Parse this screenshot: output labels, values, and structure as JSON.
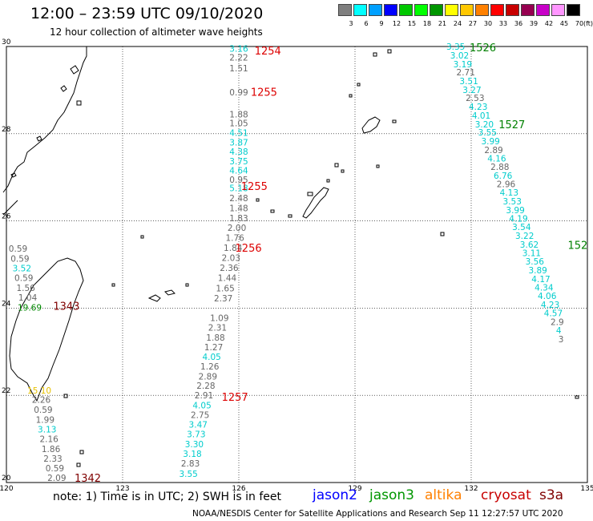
{
  "header": {
    "title": "12:00 – 23:59 UTC 09/10/2020",
    "subtitle": "12 hour collection of altimeter wave heights"
  },
  "colorbar": {
    "unit": "(ft)",
    "ticks": [
      "3",
      "6",
      "9",
      "12",
      "15",
      "18",
      "21",
      "24",
      "27",
      "30",
      "33",
      "36",
      "39",
      "42",
      "45",
      "70"
    ],
    "colors": [
      "#7f7f7f",
      "#00ffff",
      "#00a0ff",
      "#0000ff",
      "#00c800",
      "#00ff00",
      "#009600",
      "#ffff00",
      "#ffc800",
      "#ff8000",
      "#ff0000",
      "#c80000",
      "#960050",
      "#c800c8",
      "#ff96ff",
      "#000000"
    ]
  },
  "footer": {
    "note": "note:  1) Time is in UTC;  2) SWH is in feet",
    "credit": "NOAA/NESDIS Center for Satellite Applications and Research    Sep 11 12:27:57 UTC 2020"
  },
  "legend": [
    {
      "label": "jason2",
      "color": "#0000ff"
    },
    {
      "label": "jason3",
      "color": "#009600"
    },
    {
      "label": "altika",
      "color": "#ff8000"
    },
    {
      "label": "cryosat",
      "color": "#c80000"
    },
    {
      "label": "s3a",
      "color": "#800000"
    }
  ],
  "chart_data": {
    "type": "scatter",
    "title": "12 hour collection of altimeter wave heights",
    "x_axis": {
      "ticks": [
        "120",
        "123",
        "126",
        "129",
        "132",
        "135"
      ],
      "range": [
        120,
        135
      ]
    },
    "y_axis": {
      "ticks": [
        "20",
        "22",
        "24",
        "26",
        "28",
        "30"
      ],
      "range": [
        20,
        30
      ]
    },
    "grid": true,
    "value_colors": {
      "grey": "#666666",
      "cyan": "#00cccc",
      "orange": "#e6c000",
      "green": "#008800"
    },
    "time_color": {
      "red": "#dd0000",
      "green": "#008000",
      "maroon": "#800000"
    },
    "tracks": [
      {
        "name": "track-126",
        "points": [
          {
            "lon": 126.0,
            "lat": 29.95,
            "v": "3.16",
            "c": "cyan"
          },
          {
            "lon": 126.0,
            "lat": 29.75,
            "v": "2.22",
            "c": "grey"
          },
          {
            "lon": 126.0,
            "lat": 29.5,
            "v": "1.51",
            "c": "grey"
          },
          {
            "lon": 126.0,
            "lat": 28.95,
            "v": "0.99",
            "c": "grey"
          },
          {
            "lon": 126.0,
            "lat": 28.45,
            "v": "1.88",
            "c": "grey"
          },
          {
            "lon": 126.0,
            "lat": 28.24,
            "v": "1.05",
            "c": "grey"
          },
          {
            "lon": 126.0,
            "lat": 28.02,
            "v": "4.51",
            "c": "cyan"
          },
          {
            "lon": 126.0,
            "lat": 27.8,
            "v": "3.87",
            "c": "cyan"
          },
          {
            "lon": 126.0,
            "lat": 27.59,
            "v": "4.38",
            "c": "cyan"
          },
          {
            "lon": 126.0,
            "lat": 27.37,
            "v": "3.75",
            "c": "cyan"
          },
          {
            "lon": 126.0,
            "lat": 27.16,
            "v": "4.64",
            "c": "cyan"
          },
          {
            "lon": 126.0,
            "lat": 26.95,
            "v": "0.95",
            "c": "grey"
          },
          {
            "lon": 126.0,
            "lat": 26.76,
            "v": "5.18",
            "c": "cyan"
          },
          {
            "lon": 126.0,
            "lat": 26.53,
            "v": "2.48",
            "c": "grey"
          },
          {
            "lon": 126.0,
            "lat": 26.3,
            "v": "1.48",
            "c": "grey"
          },
          {
            "lon": 126.0,
            "lat": 26.07,
            "v": "1.83",
            "c": "grey"
          },
          {
            "lon": 125.95,
            "lat": 25.85,
            "v": "2.00",
            "c": "grey"
          },
          {
            "lon": 125.9,
            "lat": 25.62,
            "v": "1.76",
            "c": "grey"
          },
          {
            "lon": 125.85,
            "lat": 25.39,
            "v": "1.84",
            "c": "grey"
          },
          {
            "lon": 125.8,
            "lat": 25.16,
            "v": "2.03",
            "c": "grey"
          },
          {
            "lon": 125.75,
            "lat": 24.93,
            "v": "2.36",
            "c": "grey"
          },
          {
            "lon": 125.7,
            "lat": 24.7,
            "v": "1.44",
            "c": "grey"
          },
          {
            "lon": 125.65,
            "lat": 24.46,
            "v": "1.65",
            "c": "grey"
          },
          {
            "lon": 125.6,
            "lat": 24.23,
            "v": "2.37",
            "c": "grey"
          },
          {
            "lon": 125.5,
            "lat": 23.78,
            "v": "1.09",
            "c": "grey"
          },
          {
            "lon": 125.45,
            "lat": 23.56,
            "v": "2.31",
            "c": "grey"
          },
          {
            "lon": 125.4,
            "lat": 23.33,
            "v": "1.88",
            "c": "grey"
          },
          {
            "lon": 125.35,
            "lat": 23.11,
            "v": "1.27",
            "c": "grey"
          },
          {
            "lon": 125.3,
            "lat": 22.89,
            "v": "4.05",
            "c": "cyan"
          },
          {
            "lon": 125.25,
            "lat": 22.67,
            "v": "1.26",
            "c": "grey"
          },
          {
            "lon": 125.2,
            "lat": 22.44,
            "v": "2.89",
            "c": "grey"
          },
          {
            "lon": 125.15,
            "lat": 22.22,
            "v": "2.28",
            "c": "grey"
          },
          {
            "lon": 125.1,
            "lat": 22.0,
            "v": "2.91",
            "c": "grey"
          },
          {
            "lon": 125.05,
            "lat": 21.77,
            "v": "4.05",
            "c": "cyan"
          },
          {
            "lon": 125.0,
            "lat": 21.55,
            "v": "2.75",
            "c": "grey"
          },
          {
            "lon": 124.95,
            "lat": 21.33,
            "v": "3.47",
            "c": "cyan"
          },
          {
            "lon": 124.9,
            "lat": 21.11,
            "v": "3.73",
            "c": "cyan"
          },
          {
            "lon": 124.85,
            "lat": 20.88,
            "v": "3.30",
            "c": "cyan"
          },
          {
            "lon": 124.8,
            "lat": 20.66,
            "v": "3.18",
            "c": "cyan"
          },
          {
            "lon": 124.75,
            "lat": 20.44,
            "v": "2.83",
            "c": "grey"
          },
          {
            "lon": 124.7,
            "lat": 20.2,
            "v": "3.55",
            "c": "cyan"
          }
        ],
        "times": [
          {
            "lon": 126.75,
            "lat": 29.91,
            "t": "1254",
            "c": "red"
          },
          {
            "lon": 126.65,
            "lat": 28.96,
            "t": "1255",
            "c": "red"
          },
          {
            "lon": 126.4,
            "lat": 26.8,
            "t": "1255",
            "c": "red"
          },
          {
            "lon": 126.25,
            "lat": 25.39,
            "t": "1256",
            "c": "red"
          },
          {
            "lon": 125.9,
            "lat": 21.97,
            "t": "1257",
            "c": "red"
          }
        ]
      },
      {
        "name": "track-132",
        "points": [
          {
            "lon": 131.6,
            "lat": 30.0,
            "v": "3.35",
            "c": "cyan"
          },
          {
            "lon": 131.7,
            "lat": 29.8,
            "v": "3.02",
            "c": "cyan"
          },
          {
            "lon": 131.78,
            "lat": 29.6,
            "v": "3.19",
            "c": "cyan"
          },
          {
            "lon": 131.86,
            "lat": 29.41,
            "v": "2.71",
            "c": "grey"
          },
          {
            "lon": 131.94,
            "lat": 29.21,
            "v": "3.51",
            "c": "cyan"
          },
          {
            "lon": 132.02,
            "lat": 29.01,
            "v": "3.27",
            "c": "cyan"
          },
          {
            "lon": 132.1,
            "lat": 28.82,
            "v": "2.53",
            "c": "grey"
          },
          {
            "lon": 132.18,
            "lat": 28.62,
            "v": "4.23",
            "c": "cyan"
          },
          {
            "lon": 132.26,
            "lat": 28.42,
            "v": "4.01",
            "c": "cyan"
          },
          {
            "lon": 132.34,
            "lat": 28.22,
            "v": "3.20",
            "c": "cyan"
          },
          {
            "lon": 132.42,
            "lat": 28.03,
            "v": "3.55",
            "c": "cyan"
          },
          {
            "lon": 132.5,
            "lat": 27.83,
            "v": "3.99",
            "c": "cyan"
          },
          {
            "lon": 132.58,
            "lat": 27.63,
            "v": "2.89",
            "c": "grey"
          },
          {
            "lon": 132.66,
            "lat": 27.44,
            "v": "4.16",
            "c": "cyan"
          },
          {
            "lon": 132.74,
            "lat": 27.24,
            "v": "2.88",
            "c": "grey"
          },
          {
            "lon": 132.82,
            "lat": 27.04,
            "v": "6.76",
            "c": "cyan"
          },
          {
            "lon": 132.9,
            "lat": 26.85,
            "v": "2.96",
            "c": "grey"
          },
          {
            "lon": 132.98,
            "lat": 26.65,
            "v": "4.13",
            "c": "cyan"
          },
          {
            "lon": 133.06,
            "lat": 26.45,
            "v": "3.53",
            "c": "cyan"
          },
          {
            "lon": 133.14,
            "lat": 26.25,
            "v": "3.99",
            "c": "cyan"
          },
          {
            "lon": 133.22,
            "lat": 26.06,
            "v": "4.19",
            "c": "cyan"
          },
          {
            "lon": 133.3,
            "lat": 25.86,
            "v": "3.54",
            "c": "cyan"
          },
          {
            "lon": 133.38,
            "lat": 25.66,
            "v": "3.22",
            "c": "cyan"
          },
          {
            "lon": 133.5,
            "lat": 25.46,
            "v": "3.62",
            "c": "cyan"
          },
          {
            "lon": 133.56,
            "lat": 25.27,
            "v": "3.11",
            "c": "cyan"
          },
          {
            "lon": 133.64,
            "lat": 25.07,
            "v": "3.56",
            "c": "cyan"
          },
          {
            "lon": 133.72,
            "lat": 24.87,
            "v": "3.89",
            "c": "cyan"
          },
          {
            "lon": 133.8,
            "lat": 24.67,
            "v": "4.17",
            "c": "cyan"
          },
          {
            "lon": 133.88,
            "lat": 24.48,
            "v": "4.34",
            "c": "cyan"
          },
          {
            "lon": 133.96,
            "lat": 24.28,
            "v": "4.06",
            "c": "cyan"
          },
          {
            "lon": 134.04,
            "lat": 24.08,
            "v": "4.23",
            "c": "cyan"
          },
          {
            "lon": 134.12,
            "lat": 23.89,
            "v": "4.57",
            "c": "cyan"
          },
          {
            "lon": 134.22,
            "lat": 23.69,
            "v": "2.9",
            "c": "grey"
          },
          {
            "lon": 134.26,
            "lat": 23.49,
            "v": "4",
            "c": "cyan"
          },
          {
            "lon": 134.32,
            "lat": 23.29,
            "v": "3",
            "c": "grey"
          }
        ],
        "times": [
          {
            "lon": 132.3,
            "lat": 29.98,
            "t": "1526",
            "c": "green"
          },
          {
            "lon": 133.05,
            "lat": 28.22,
            "t": "1527",
            "c": "green"
          },
          {
            "lon": 134.75,
            "lat": 25.45,
            "t": "152",
            "c": "green"
          }
        ]
      },
      {
        "name": "track-taiwan",
        "points": [
          {
            "lon": 120.3,
            "lat": 25.37,
            "v": "0.59",
            "c": "grey"
          },
          {
            "lon": 120.35,
            "lat": 25.14,
            "v": "0.59",
            "c": "grey"
          },
          {
            "lon": 120.4,
            "lat": 24.92,
            "v": "3.52",
            "c": "cyan"
          },
          {
            "lon": 120.45,
            "lat": 24.7,
            "v": "0.59",
            "c": "grey"
          },
          {
            "lon": 120.5,
            "lat": 24.47,
            "v": "1.56",
            "c": "grey"
          },
          {
            "lon": 120.55,
            "lat": 24.25,
            "v": "1.04",
            "c": "grey"
          },
          {
            "lon": 120.6,
            "lat": 24.02,
            "v": "19.69",
            "c": "green"
          },
          {
            "lon": 120.85,
            "lat": 22.11,
            "v": "15.10",
            "c": "orange"
          },
          {
            "lon": 120.9,
            "lat": 21.9,
            "v": "2.26",
            "c": "grey"
          },
          {
            "lon": 120.95,
            "lat": 21.67,
            "v": "0.59",
            "c": "grey"
          },
          {
            "lon": 121.0,
            "lat": 21.44,
            "v": "1.99",
            "c": "grey"
          },
          {
            "lon": 121.05,
            "lat": 21.22,
            "v": "3.13",
            "c": "cyan"
          },
          {
            "lon": 121.1,
            "lat": 21.0,
            "v": "2.16",
            "c": "grey"
          },
          {
            "lon": 121.15,
            "lat": 20.77,
            "v": "1.86",
            "c": "grey"
          },
          {
            "lon": 121.2,
            "lat": 20.55,
            "v": "2.33",
            "c": "grey"
          },
          {
            "lon": 121.25,
            "lat": 20.33,
            "v": "0.59",
            "c": "grey"
          },
          {
            "lon": 121.3,
            "lat": 20.11,
            "v": "2.09",
            "c": "grey"
          }
        ],
        "times": [
          {
            "lon": 121.55,
            "lat": 24.05,
            "t": "1343",
            "c": "maroon"
          },
          {
            "lon": 122.1,
            "lat": 20.11,
            "t": "1342",
            "c": "maroon"
          }
        ]
      }
    ]
  }
}
